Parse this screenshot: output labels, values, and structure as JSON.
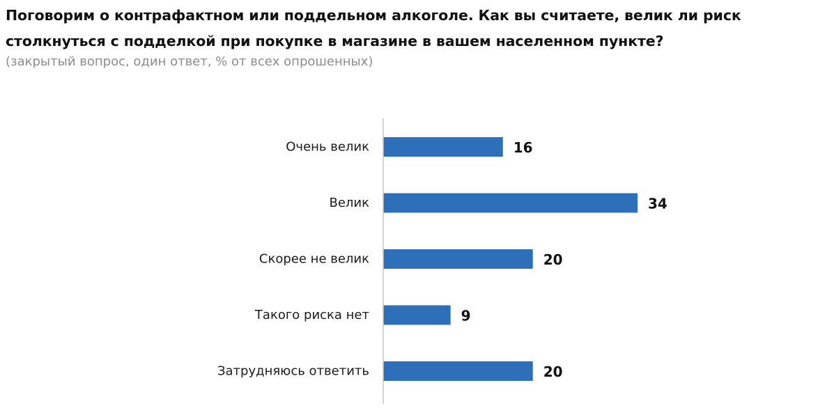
{
  "header": {
    "title": "Поговорим о контрафактном или поддельном алкоголе. Как вы считаете, велик ли риск столкнуться с подделкой при покупке в магазине в вашем населенном пункте?",
    "subtitle": "(закрытый вопрос, один ответ, % от всех опрошенных)"
  },
  "chart_data": {
    "type": "bar",
    "orientation": "horizontal",
    "title": "",
    "xlabel": "",
    "ylabel": "",
    "categories": [
      "Очень велик",
      "Велик",
      "Скорее не велик",
      "Такого риска нет",
      "Затрудняюсь ответить"
    ],
    "values": [
      16,
      34,
      20,
      9,
      20
    ],
    "xlim": [
      0,
      34
    ],
    "grid": false,
    "legend": "none",
    "bar_color": "#2e6fba",
    "axis_color": "#c8c8c8"
  }
}
